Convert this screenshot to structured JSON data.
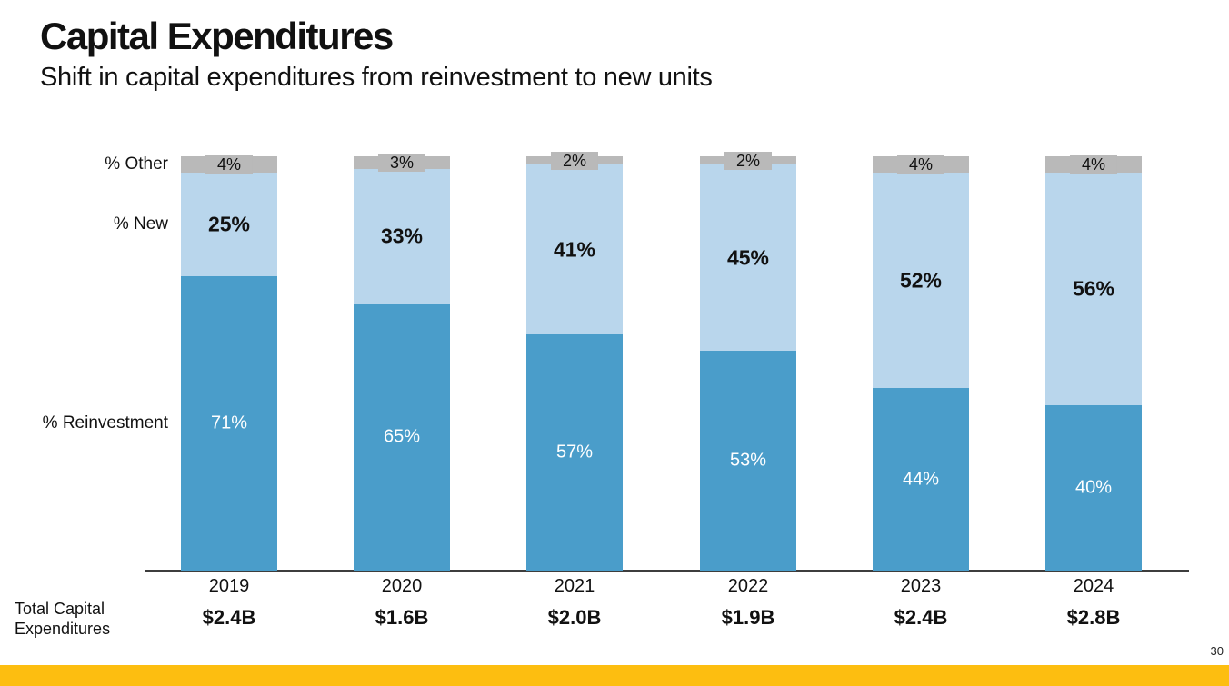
{
  "slide": {
    "title": "Capital Expenditures",
    "subtitle": "Shift in capital expenditures from reinvestment to new units",
    "page_number": "30"
  },
  "chart_data": {
    "type": "bar",
    "variant": "stacked-100-percent-column",
    "title": "Capital Expenditures",
    "categories": [
      "2019",
      "2020",
      "2021",
      "2022",
      "2023",
      "2024"
    ],
    "series": [
      {
        "name": "% Other",
        "color": "#b9b9b9",
        "values": [
          4,
          3,
          2,
          2,
          4,
          4
        ]
      },
      {
        "name": "% New",
        "color": "#b9d6ec",
        "values": [
          25,
          33,
          41,
          45,
          52,
          56
        ]
      },
      {
        "name": "% Reinvestment",
        "color": "#4a9dca",
        "values": [
          71,
          65,
          57,
          53,
          44,
          40
        ]
      }
    ],
    "series_order_top_to_bottom": [
      "% Other",
      "% New",
      "% Reinvestment"
    ],
    "totals_row": {
      "label": "Total Capital Expenditures",
      "values": [
        "$2.4B",
        "$1.6B",
        "$2.0B",
        "$1.9B",
        "$2.4B",
        "$2.8B"
      ]
    },
    "axis": {
      "y_range": [
        0,
        100
      ],
      "gridlines": false,
      "x_axis_line": true
    },
    "legend_position": "left-of-first-bar"
  },
  "colors": {
    "reinvestment_blue": "#4a9dca",
    "new_light_blue": "#b9d6ec",
    "other_gray": "#b9b9b9",
    "accent_yellow": "#fdbe10",
    "axis_line": "#3d3d3d",
    "text": "#111111"
  }
}
